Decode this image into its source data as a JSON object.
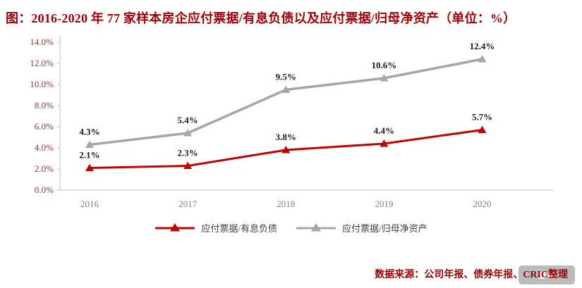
{
  "title": "图：2016-2020 年 77 家样本房企应付票据/有息负债以及应付票据/归母净资产（单位：%）",
  "footer": {
    "source_text": "数据来源：公司年报、债券年报、CRIC整理"
  },
  "colors": {
    "background": "#ffffff",
    "title": "#9c0006",
    "footer": "#9c0006",
    "axis_labels_y": "#953735",
    "axis_labels_x": "#808080",
    "axis_line": "#bfbfbf",
    "data_label": "#1a1a1a",
    "legend_text": "#404040",
    "watermark": "#a6a6a6"
  },
  "chart_data": {
    "type": "line",
    "title": "图：2016-2020 年 77 家样本房企应付票据/有息负债以及应付票据/归母净资产（单位：%）",
    "categories": [
      "2016",
      "2017",
      "2018",
      "2019",
      "2020"
    ],
    "series": [
      {
        "name": "应付票据/有息负债",
        "values": [
          2.1,
          2.3,
          3.8,
          4.4,
          5.7
        ],
        "color": "#c00000",
        "marker": "triangle",
        "width": 3
      },
      {
        "name": "应付票据/归母净资产",
        "values": [
          4.3,
          5.4,
          9.5,
          10.6,
          12.4
        ],
        "color": "#a6a6a6",
        "marker": "triangle",
        "width": 3.5
      }
    ],
    "xlabel": "",
    "ylabel": "",
    "ylim": [
      0,
      14
    ],
    "ytick_step": 2,
    "ytick_labels": [
      "0.0%",
      "2.0%",
      "4.0%",
      "6.0%",
      "8.0%",
      "10.0%",
      "12.0%",
      "14.0%"
    ],
    "grid": false,
    "legend_position": "bottom",
    "data_labels": true
  }
}
